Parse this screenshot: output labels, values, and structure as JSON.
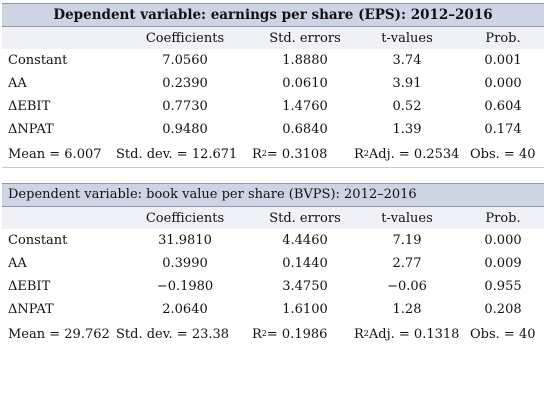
{
  "col_headers": [
    "Coefficients",
    "Std. errors",
    "t-values",
    "Prob."
  ],
  "panels": [
    {
      "title": "Dependent variable: earnings per share (EPS): 2012–2016",
      "rows": [
        {
          "name": "Constant",
          "coef": "7.0560",
          "se": "1.8880",
          "t": "3.74",
          "p": "0.001"
        },
        {
          "name": "AA",
          "coef": "0.2390",
          "se": "0.0610",
          "t": "3.91",
          "p": "0.000"
        },
        {
          "name": "ΔEBIT",
          "coef": "0.7730",
          "se": "1.4760",
          "t": "0.52",
          "p": "0.604"
        },
        {
          "name": "ΔNPAT",
          "coef": "0.9480",
          "se": "0.6840",
          "t": "1.39",
          "p": "0.174"
        }
      ],
      "stats": {
        "mean": "Mean = 6.007",
        "sd": "Std. dev. = 12.671",
        "r2_prefix": "R",
        "r2_sup": "2",
        "r2_value": " = 0.3108",
        "r2adj_prefix": "R",
        "r2adj_sup": "2",
        "r2adj_value": " Adj. = 0.2534",
        "obs": "Obs. = 40"
      }
    },
    {
      "title": "Dependent variable: book value per share (BVPS): 2012–2016",
      "rows": [
        {
          "name": "Constant",
          "coef": "31.9810",
          "se": "4.4460",
          "t": "7.19",
          "p": "0.000"
        },
        {
          "name": "AA",
          "coef": "0.3990",
          "se": "0.1440",
          "t": "2.77",
          "p": "0.009"
        },
        {
          "name": "ΔEBIT",
          "coef": "−0.1980",
          "se": "3.4750",
          "t": "−0.06",
          "p": "0.955"
        },
        {
          "name": "ΔNPAT",
          "coef": "2.0640",
          "se": "1.6100",
          "t": "1.28",
          "p": "0.208"
        }
      ],
      "stats": {
        "mean": "Mean = 29.762",
        "sd": "Std. dev. = 23.38",
        "r2_prefix": "R",
        "r2_sup": "2",
        "r2_value": " = 0.1986",
        "r2adj_prefix": "R",
        "r2adj_sup": "2",
        "r2adj_value": " Adj. = 0.1318",
        "obs": "Obs. = 40"
      }
    }
  ]
}
